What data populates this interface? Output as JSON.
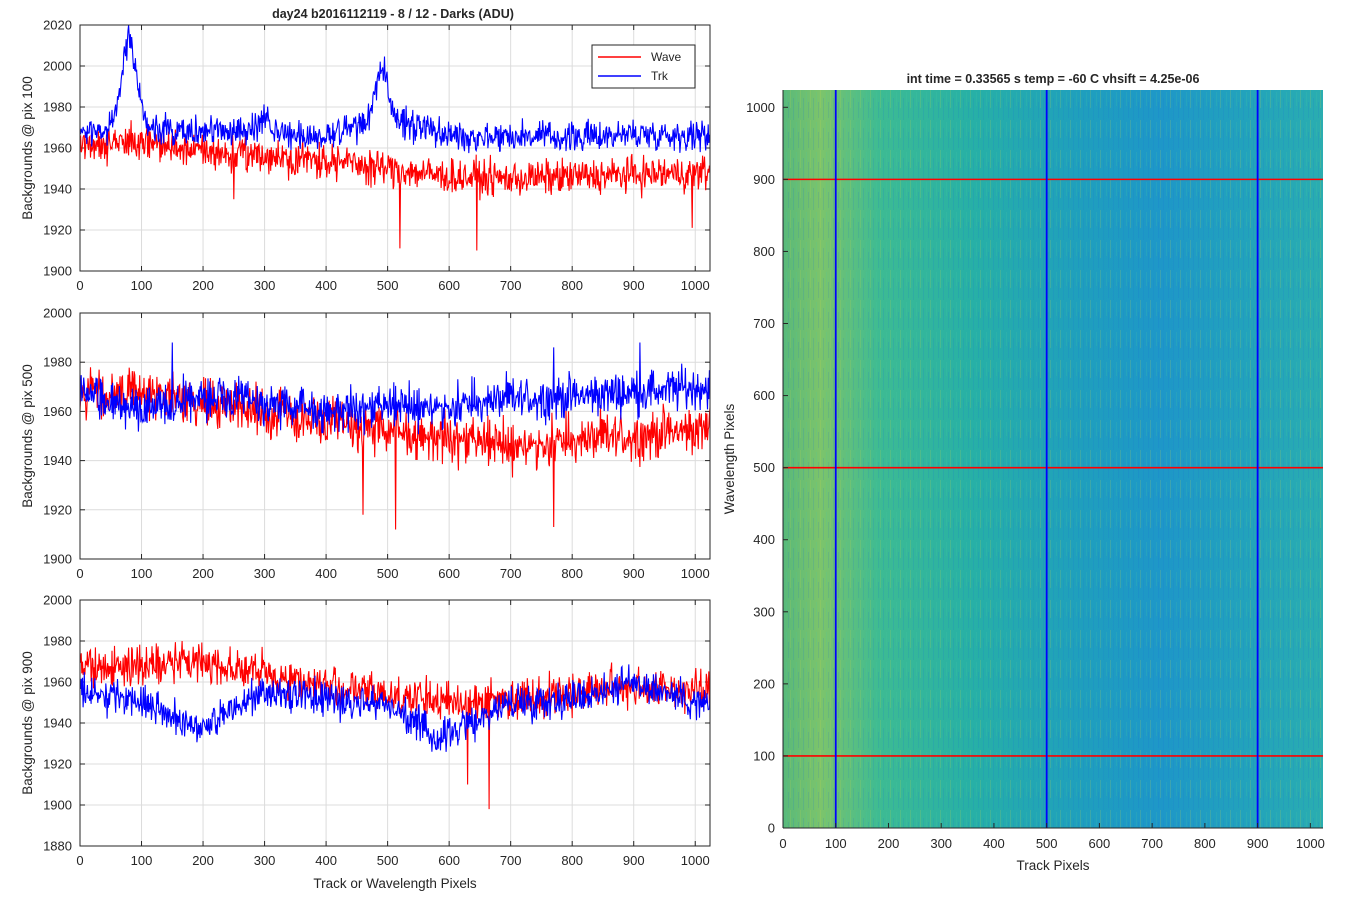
{
  "figure": {
    "title": "day24 b2016112119 - 8 / 12 - Darks (ADU)"
  },
  "chart_data": [
    {
      "type": "line",
      "id": "pix100",
      "ylabel": "Backgrounds @ pix 100",
      "xlabel": "",
      "xlim": [
        0,
        1024
      ],
      "ylim": [
        1900,
        2020
      ],
      "xticks": [
        "0",
        "100",
        "200",
        "300",
        "400",
        "500",
        "600",
        "700",
        "800",
        "900",
        "1000"
      ],
      "yticks": [
        "1900",
        "1920",
        "1940",
        "1960",
        "1980",
        "2000",
        "2020"
      ],
      "grid": true,
      "legend": {
        "placement": "top-right",
        "entries": [
          "Wave",
          "Trk"
        ]
      },
      "series": [
        {
          "name": "Wave",
          "color": "#ff0000",
          "mean_profile": [
            [
              0,
              1962
            ],
            [
              100,
              1963
            ],
            [
              200,
              1958
            ],
            [
              300,
              1956
            ],
            [
              400,
              1954
            ],
            [
              500,
              1950
            ],
            [
              600,
              1946
            ],
            [
              700,
              1945
            ],
            [
              800,
              1946
            ],
            [
              900,
              1947
            ],
            [
              1024,
              1948
            ]
          ],
          "noise": 7,
          "spike_down": [
            [
              250,
              1935
            ],
            [
              520,
              1911
            ],
            [
              645,
              1910
            ],
            [
              995,
              1921
            ]
          ]
        },
        {
          "name": "Trk",
          "color": "#0000ff",
          "mean_profile": [
            [
              0,
              1968
            ],
            [
              100,
              1970
            ],
            [
              200,
              1968
            ],
            [
              300,
              1968
            ],
            [
              400,
              1966
            ],
            [
              500,
              1975
            ],
            [
              600,
              1966
            ],
            [
              700,
              1966
            ],
            [
              800,
              1965
            ],
            [
              900,
              1967
            ],
            [
              1024,
              1966
            ]
          ],
          "noise": 6,
          "bumps": [
            [
              80,
              2013,
              12
            ],
            [
              490,
              1998,
              10
            ],
            [
              300,
              1977,
              6
            ]
          ]
        }
      ]
    },
    {
      "type": "line",
      "id": "pix500",
      "ylabel": "Backgrounds @ pix 500",
      "xlabel": "",
      "xlim": [
        0,
        1024
      ],
      "ylim": [
        1900,
        2000
      ],
      "xticks": [
        "0",
        "100",
        "200",
        "300",
        "400",
        "500",
        "600",
        "700",
        "800",
        "900",
        "1000"
      ],
      "yticks": [
        "1900",
        "1920",
        "1940",
        "1960",
        "1980",
        "2000"
      ],
      "grid": true,
      "series": [
        {
          "name": "Wave",
          "color": "#ff0000",
          "mean_profile": [
            [
              0,
              1966
            ],
            [
              100,
              1968
            ],
            [
              200,
              1964
            ],
            [
              300,
              1960
            ],
            [
              400,
              1955
            ],
            [
              500,
              1952
            ],
            [
              600,
              1949
            ],
            [
              700,
              1946
            ],
            [
              800,
              1948
            ],
            [
              900,
              1950
            ],
            [
              1024,
              1953
            ]
          ],
          "noise": 8,
          "spike_down": [
            [
              513,
              1912
            ],
            [
              770,
              1913
            ],
            [
              460,
              1918
            ]
          ]
        },
        {
          "name": "Trk",
          "color": "#0000ff",
          "mean_profile": [
            [
              0,
              1968
            ],
            [
              100,
              1960
            ],
            [
              200,
              1966
            ],
            [
              300,
              1963
            ],
            [
              400,
              1960
            ],
            [
              500,
              1962
            ],
            [
              600,
              1962
            ],
            [
              700,
              1965
            ],
            [
              800,
              1966
            ],
            [
              900,
              1968
            ],
            [
              1024,
              1970
            ]
          ],
          "noise": 7,
          "spike_up": [
            [
              150,
              1988
            ],
            [
              770,
              1986
            ],
            [
              910,
              1988
            ]
          ]
        }
      ]
    },
    {
      "type": "line",
      "id": "pix900",
      "ylabel": "Backgrounds @ pix 900",
      "xlabel": "Track or Wavelength Pixels",
      "xlim": [
        0,
        1024
      ],
      "ylim": [
        1880,
        2000
      ],
      "xticks": [
        "0",
        "100",
        "200",
        "300",
        "400",
        "500",
        "600",
        "700",
        "800",
        "900",
        "1000"
      ],
      "yticks": [
        "1880",
        "1900",
        "1920",
        "1940",
        "1960",
        "1980",
        "2000"
      ],
      "grid": true,
      "series": [
        {
          "name": "Wave",
          "color": "#ff0000",
          "mean_profile": [
            [
              0,
              1968
            ],
            [
              100,
              1968
            ],
            [
              200,
              1970
            ],
            [
              300,
              1964
            ],
            [
              400,
              1958
            ],
            [
              500,
              1954
            ],
            [
              600,
              1950
            ],
            [
              700,
              1952
            ],
            [
              800,
              1955
            ],
            [
              900,
              1958
            ],
            [
              1024,
              1955
            ]
          ],
          "noise": 8,
          "spike_down": [
            [
              665,
              1898
            ],
            [
              630,
              1910
            ]
          ]
        },
        {
          "name": "Trk",
          "color": "#0000ff",
          "mean_profile": [
            [
              0,
              1955
            ],
            [
              100,
              1950
            ],
            [
              200,
              1938
            ],
            [
              300,
              1955
            ],
            [
              400,
              1952
            ],
            [
              500,
              1950
            ],
            [
              580,
              1932
            ],
            [
              700,
              1950
            ],
            [
              800,
              1952
            ],
            [
              900,
              1960
            ],
            [
              1024,
              1948
            ]
          ],
          "noise": 7
        }
      ]
    },
    {
      "type": "heatmap",
      "id": "image",
      "title": "int time = 0.33565 s    temp = -60 C    vhsift = 4.25e-06",
      "xlabel": "Track Pixels",
      "ylabel": "Wavelength Pixels",
      "xlim": [
        0,
        1024
      ],
      "ylim": [
        0,
        1024
      ],
      "xticks": [
        "0",
        "100",
        "200",
        "300",
        "400",
        "500",
        "600",
        "700",
        "800",
        "900",
        "1000"
      ],
      "yticks": [
        "0",
        "100",
        "200",
        "300",
        "400",
        "500",
        "600",
        "700",
        "800",
        "900",
        "1000"
      ],
      "colormap": "parula",
      "vertical_markers": {
        "color": "#0000ff",
        "x": [
          100,
          500,
          900
        ]
      },
      "horizontal_markers": {
        "color": "#ff0000",
        "y": [
          100,
          500,
          900
        ]
      }
    }
  ]
}
